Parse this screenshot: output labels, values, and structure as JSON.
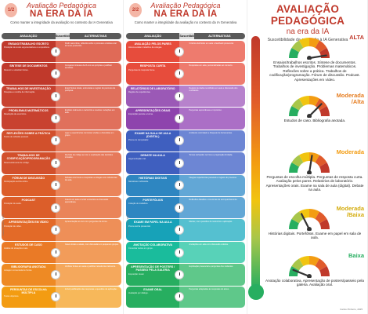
{
  "panel1": {
    "number": "1/2",
    "title_line1": "Avaliação Pedagógica",
    "title_line2": "NA ERA DA IA",
    "subtitle": "Como manter a integridade da avaliação no contexto da IA Generativa",
    "col_left": "AVALIAÇÃO",
    "col_mid": "Suscetibilidade à IA",
    "col_right": "ALTERNATIVAS",
    "rows": [
      {
        "name": "Ensaio/Trabalho escrito",
        "desc": "Produção de textos argumentativos ou expositivos.",
        "alt": "Pedir rascunhos, reflexão sobre o processo e defesa oral do texto produzido.",
        "color": "#c0392b",
        "alt_color": "#e06a57"
      },
      {
        "name": "Síntese de documentos",
        "desc": "Resumir e sintetizar fontes.",
        "alt": "Comparar sínteses da IA com as próprias e justificar escolhas.",
        "color": "#c0392b",
        "alt_color": "#e06a57"
      },
      {
        "name": "Trabalhos de investigação",
        "desc": "Pesquisa e recolha de informação.",
        "alt": "Exigir fontes locais, entrevistas e registo do percurso de pesquisa.",
        "color": "#c84230",
        "alt_color": "#e0705c"
      },
      {
        "name": "Problemas matemáticos",
        "desc": "Resolução de exercícios.",
        "alt": "Explicar oralmente o raciocínio e resolver variações em aula.",
        "color": "#c84230",
        "alt_color": "#e0705c"
      },
      {
        "name": "Reflexões sobre a prática",
        "desc": "Textos de reflexão pessoal.",
        "alt": "Ligar a experiências concretas vividas e discutidas em grupo.",
        "color": "#d2502c",
        "alt_color": "#e6795a"
      },
      {
        "name": "Trabalhos de codificação/programação",
        "desc": "Desenvolvimento de código.",
        "alt": "Revisão de código ao vivo e explicação das decisões tomadas.",
        "color": "#d2502c",
        "alt_color": "#e6795a"
      },
      {
        "name": "Fórum de discussão",
        "desc": "Participação escrita online.",
        "alt": "Debates síncronos e respostas a colegas com referências da aula.",
        "color": "#dc5e2a",
        "alt_color": "#ea8459"
      },
      {
        "name": "Podcast",
        "desc": "Produção de áudio.",
        "alt": "Gravar em aula e incluir entrevista ou discussão espontânea.",
        "color": "#dc5e2a",
        "alt_color": "#ea8459"
      },
      {
        "name": "Apresentações em vídeo",
        "desc": "Produção de vídeo.",
        "alt": "Apresentação ao vivo com perguntas da turma.",
        "color": "#e36a28",
        "alt_color": "#ee8f58"
      },
      {
        "name": "Estudos de caso",
        "desc": "Análise de situações reais.",
        "alt": "Casos locais e atuais, com discussão em pequenos grupos.",
        "color": "#ea7a26",
        "alt_color": "#f29c5a"
      },
      {
        "name": "Bibliografia anotada",
        "desc": "Listagem comentada de fontes.",
        "alt": "Verificar fontes em aula e justificar relevância oralmente.",
        "color": "#ee8a24",
        "alt_color": "#f5a85c"
      },
      {
        "name": "Perguntas de escolha múltipla",
        "desc": "Testes objetivos.",
        "alt": "Incluir justificação das respostas e questões de aplicação.",
        "color": "#f39c12",
        "alt_color": "#f7b85a"
      }
    ],
    "credit": "Carlos Pinheiro, 2025"
  },
  "panel2": {
    "number": "2/2",
    "title_line1": "Avaliação Pedagógica",
    "title_line2": "NA ERA DA IA",
    "subtitle": "Como manter a integridade da avaliação no contexto da IA Generativa",
    "col_left": "AVALIAÇÃO",
    "col_mid": "Suscetibilidade à IA",
    "col_right": "ALTERNATIVAS",
    "rows": [
      {
        "name": "Avaliação pelos pares",
        "desc": "Alunos avaliam trabalhos de colegas.",
        "alt": "Critérios definidos em aula e feedback presencial.",
        "color": "#e74c3c",
        "alt_color": "#ee7b6e"
      },
      {
        "name": "Resposta curta",
        "desc": "Perguntas de resposta breve.",
        "alt": "Respostas em aula, personalizadas ao contexto.",
        "color": "#e74c3c",
        "alt_color": "#ee7b6e"
      },
      {
        "name": "Relatórios de laboratório",
        "desc": "Registo de experiências.",
        "alt": "Registo de dados recolhidos em aula e discussão dos resultados.",
        "color": "#9b59b6",
        "alt_color": "#b782cc"
      },
      {
        "name": "Apresentações orais",
        "desc": "Exposição perante a turma.",
        "alt": "Perguntas espontâneas e improviso.",
        "color": "#8e44ad",
        "alt_color": "#ab6fc6"
      },
      {
        "name": "Exame na sala de aula (digital)",
        "desc": "Prova em computador.",
        "alt": "Ambiente controlado e bloqueio de ferramentas.",
        "color": "#3f5fbf",
        "alt_color": "#6d86d4"
      },
      {
        "name": "Debate na aula",
        "desc": "Argumentação oral.",
        "alt": "Temas sorteados na hora e preparação limitada.",
        "color": "#3f5fbf",
        "alt_color": "#6d86d4"
      },
      {
        "name": "Histórias digitais",
        "desc": "Narrativas multimédia.",
        "alt": "Integrar experiências pessoais e registo do processo.",
        "color": "#2e86c1",
        "alt_color": "#62a7d6"
      },
      {
        "name": "Portefólios",
        "desc": "Coleção de trabalhos.",
        "alt": "Reflexões datadas e conversas de acompanhamento.",
        "color": "#2e86c1",
        "alt_color": "#62a7d6"
      },
      {
        "name": "Exame em papel na aula",
        "desc": "Prova escrita presencial.",
        "alt": "Manter, com questões de raciocínio e aplicação.",
        "color": "#17a2b8",
        "alt_color": "#55c0d0"
      },
      {
        "name": "Anotação colaborativa",
        "desc": "Comentar textos em grupo.",
        "alt": "Anotações em aula com discussão coletiva.",
        "color": "#1abc9c",
        "alt_color": "#58d2b8"
      },
      {
        "name": "Apresentação de posters / passeio pela galeria",
        "desc": "Exposição visual.",
        "alt": "Explicação presencial e perguntas dos visitantes.",
        "color": "#27ae60",
        "alt_color": "#5fc88a"
      },
      {
        "name": "Exame oral",
        "desc": "Avaliação por diálogo.",
        "alt": "Perguntas adaptadas às respostas do aluno.",
        "color": "#27ae60",
        "alt_color": "#5fc88a"
      }
    ],
    "credit": "Carlos Pinheiro, 2025"
  },
  "panel3": {
    "title_line1": "AVALIAÇÃO PEDAGÓGICA",
    "title_line2": "na era da IA",
    "subtitle": "Suscetibilidade da avaliação à IA Generativa",
    "levels": [
      {
        "label": "ALTA",
        "color": "#c0392b",
        "needle": 0.95,
        "text": "Ensaios/trabalhos escritos. Síntese de documentos. Trabalhos de investigação. Problemas matemáticos. Reflexões sobre a prática. Trabalhos de codificação/programação. Fórum de discussão. Podcast. Apresentações em vídeo."
      },
      {
        "label": "Moderada /Alta",
        "color": "#e67e22",
        "needle": 0.75,
        "text": "Estudos de caso. Bibliografia anotada."
      },
      {
        "label": "Moderada",
        "color": "#f39c12",
        "needle": 0.55,
        "text": "Perguntas de escolha múltipla. Perguntas de resposta curta. Avaliação pelos pares. Relatórios de laboratório. Apresentações orais. Exame na sala de aula (digital). Debate na aula."
      },
      {
        "label": "Moderada /Baixa",
        "color": "#d4ac0d",
        "needle": 0.35,
        "text": "Histórias digitais. Portefólios. Exame em papel em sala de aula."
      },
      {
        "label": "Baixa",
        "color": "#27ae60",
        "needle": 0.12,
        "text": "Anotação colaborativa. Apresentação de posters/passeio pela galeria. Avaliação oral."
      }
    ],
    "credit": "Carlos Pinheiro, 2025"
  }
}
